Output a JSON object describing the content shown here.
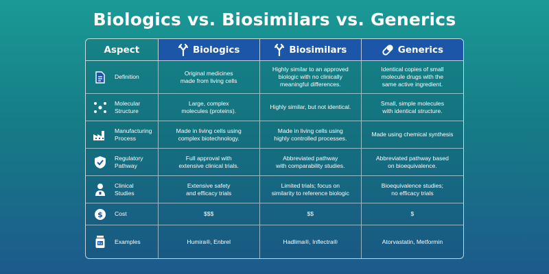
{
  "title": "Biologics vs. Biosimilars vs. Generics",
  "headers": {
    "aspect": "Aspect",
    "biologics": "Biologics",
    "biosimilars": "Biosimilars",
    "generics": "Generics"
  },
  "rows": [
    {
      "icon": "document-icon",
      "aspect": "Definition",
      "biologics": "Original medicines\nmade from living cells",
      "biosimilars": "Highly similar to an approved\nbiologic with no clinically\nmeaningful differences.",
      "generics": "Identical copies of small\nmolecule drugs with the\nsame active ingredient."
    },
    {
      "icon": "molecule-icon",
      "aspect": "Molecular\nStructure",
      "biologics": "Large, complex\nmolecules (proteins).",
      "biosimilars": "Highly similar, but not identical.",
      "generics": "Small, simple molecules\nwith identical structure."
    },
    {
      "icon": "factory-icon",
      "aspect": "Manufacturing\nProcess",
      "biologics": "Made in living cells using\ncomplex biotechnology.",
      "biosimilars": "Made in living cells using\nhighly controlled processes.",
      "generics": "Made using chemical synthesis"
    },
    {
      "icon": "shield-check-icon",
      "aspect": "Regulatory\nPathway",
      "biologics": "Full approval with\nextensive clinical trials.",
      "biosimilars": "Abbreviated pathway\nwith comparability studies.",
      "generics": "Abbreviated pathway based\non bioequivalence."
    },
    {
      "icon": "clinician-icon",
      "aspect": "Clinical\nStudies",
      "biologics": "Extensive safety\nand efficacy trials",
      "biosimilars": "Limited trials; focus on\nsimilarity to reference biologic",
      "generics": "Bioequivalence studies;\nno efficacy trials"
    },
    {
      "icon": "dollar-icon",
      "aspect": "Cost",
      "biologics": "$$$",
      "biosimilars": "$$",
      "generics": "$"
    },
    {
      "icon": "pill-bottle-icon",
      "aspect": "Examples",
      "biologics": "Humira®, Enbrel",
      "biosimilars": "Hadlima®, Inflectra®",
      "generics": "Atorvastatin, Metformin"
    }
  ]
}
